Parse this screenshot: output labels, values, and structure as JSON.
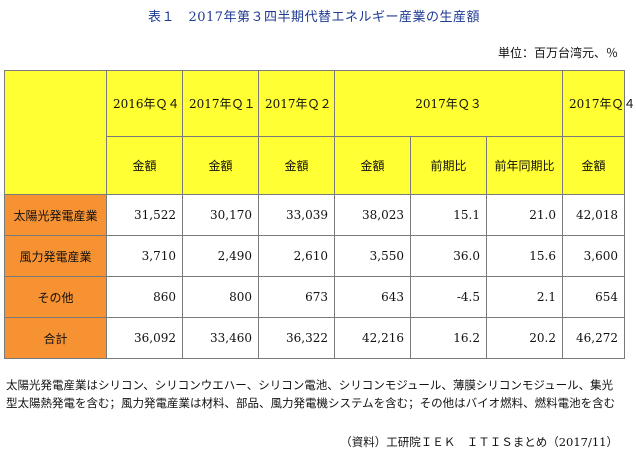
{
  "title": "表１　2017年第３四半期代替エネルギー産業の生産額",
  "unit": "単位：百万台湾元、％",
  "table": {
    "periods": [
      "2016年Ｑ４",
      "2017年Ｑ１",
      "2017年Ｑ２",
      "2017年Ｑ３",
      "2017年Ｑ４"
    ],
    "subheaders": [
      "金額",
      "金額",
      "金額",
      "金額",
      "前期比",
      "前年同期比",
      "金額"
    ],
    "rows": [
      {
        "label": "太陽光発電産業",
        "values": [
          "31,522",
          "30,170",
          "33,039",
          "38,023",
          "15.1",
          "21.0",
          "42,018"
        ]
      },
      {
        "label": "風力発電産業",
        "values": [
          "3,710",
          "2,490",
          "2,610",
          "3,550",
          "36.0",
          "15.6",
          "3,600"
        ]
      },
      {
        "label": "その他",
        "values": [
          "860",
          "800",
          "673",
          "643",
          "-4.5",
          "2.1",
          "654"
        ]
      },
      {
        "label": "合計",
        "values": [
          "36,092",
          "33,460",
          "36,322",
          "42,216",
          "16.2",
          "20.2",
          "46,272"
        ]
      }
    ]
  },
  "notes": "太陽光発電産業はシリコン、シリコンウエハー、シリコン電池、シリコンモジュール、薄膜シリコンモジュール、集光型太陽熱発電を含む；風力発電産業は材料、部品、風力発電機システムを含む；その他はバイオ燃料、燃料電池を含む",
  "source": "（資料）工研院ＩＥＫ　ＩＴＩＳまとめ（2017/11）"
}
